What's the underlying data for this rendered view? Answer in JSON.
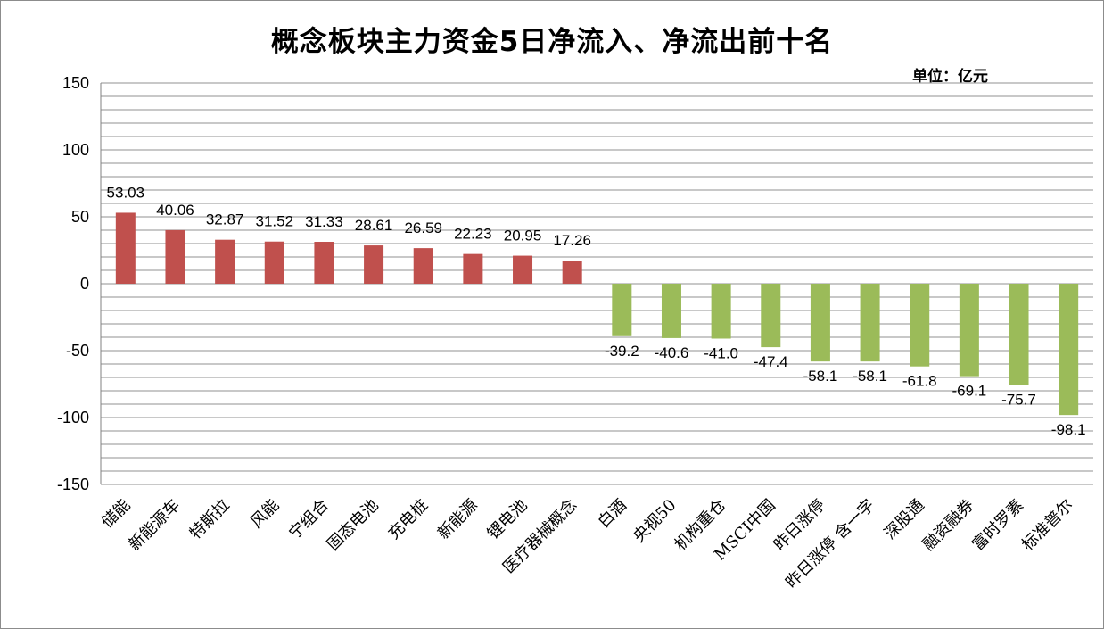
{
  "chart_data": {
    "type": "bar",
    "title": "概念板块主力资金5日净流入、净流出前十名",
    "unit_label": "单位：亿元",
    "ylim": [
      -150,
      150
    ],
    "yticks": [
      "150",
      "100",
      "50",
      "0",
      "-50",
      "-100",
      "-150"
    ],
    "grid": true,
    "categories": [
      "储能",
      "新能源车",
      "特斯拉",
      "风能",
      "宁组合",
      "固态电池",
      "充电桩",
      "新能源",
      "锂电池",
      "医疗器械概念",
      "白酒",
      "央视50_",
      "机构重仓",
      "MSCI中国",
      "昨日涨停",
      "昨日涨停_含一字",
      "深股通",
      "融资融券",
      "富时罗素",
      "标准普尔"
    ],
    "values": [
      53.03,
      40.06,
      32.87,
      31.52,
      31.33,
      28.61,
      26.59,
      22.23,
      20.95,
      17.26,
      -39.2,
      -40.6,
      -41.0,
      -47.4,
      -58.1,
      -58.1,
      -61.8,
      -69.1,
      -75.7,
      -98.1
    ],
    "value_labels": [
      "53.03",
      "40.06",
      "32.87",
      "31.52",
      "31.33",
      "28.61",
      "26.59",
      "22.23",
      "20.95",
      "17.26",
      "-39.2",
      "-40.6",
      "-41.0",
      "-47.4",
      "-58.1",
      "-58.1",
      "-61.8",
      "-69.1",
      "-75.7",
      "-98.1"
    ],
    "colors": {
      "positive": "#c0504d",
      "negative": "#9bbb59",
      "grid": "#a6a6a6",
      "axis": "#808080"
    }
  }
}
